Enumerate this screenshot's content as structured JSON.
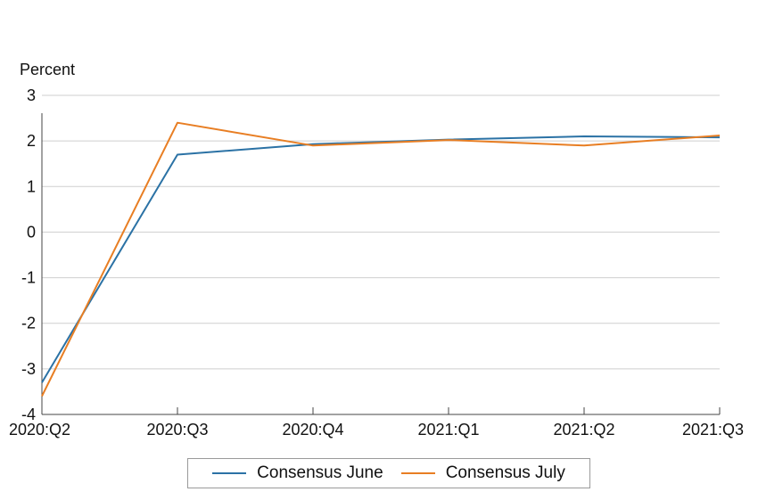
{
  "chart_data": {
    "type": "line",
    "ylabel": "Percent",
    "ylim": [
      -4,
      3
    ],
    "yticks": [
      3,
      2,
      1,
      0,
      -1,
      -2,
      -3,
      -4
    ],
    "grid": true,
    "legend_position": "bottom",
    "categories": [
      "2020:Q2",
      "2020:Q3",
      "2020:Q4",
      "2021:Q1",
      "2021:Q2",
      "2021:Q3"
    ],
    "series": [
      {
        "name": "Consensus June",
        "color": "#2b72a5",
        "values": [
          -3.3,
          1.7,
          1.93,
          2.03,
          2.1,
          2.08
        ]
      },
      {
        "name": "Consensus July",
        "color": "#e87e23",
        "values": [
          -3.6,
          2.4,
          1.9,
          2.02,
          1.9,
          2.12
        ]
      }
    ]
  }
}
